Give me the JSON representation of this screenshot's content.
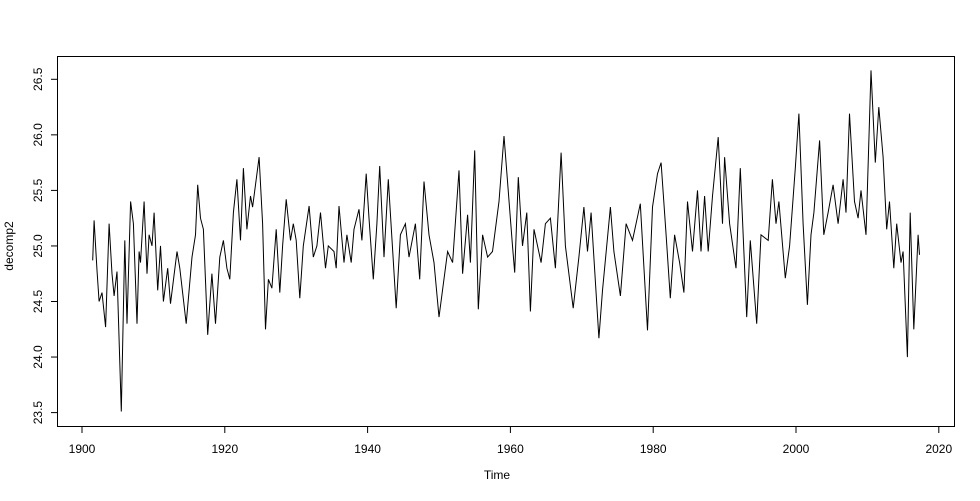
{
  "chart_data": {
    "type": "line",
    "title": "",
    "xlabel": "Time",
    "ylabel": "decomp2",
    "xlim": [
      1900,
      2020
    ],
    "ylim": [
      23.5,
      26.5
    ],
    "grid": false,
    "x_ticks": [
      1900,
      1920,
      1940,
      1960,
      1980,
      2000,
      2020
    ],
    "y_ticks": [
      "23.5",
      "24.0",
      "24.5",
      "25.0",
      "25.5",
      "26.0",
      "26.5"
    ],
    "line_color": "#000000",
    "series": [
      {
        "x": [
          1901.5,
          1901.7,
          1902.1,
          1902.4,
          1902.8,
          1903.3,
          1903.8,
          1904.2,
          1904.5,
          1904.9,
          1905.5,
          1906.0,
          1906.3,
          1906.8,
          1907.2,
          1907.7,
          1908.0,
          1908.2,
          1908.7,
          1909.1,
          1909.4,
          1909.8,
          1910.1,
          1910.6,
          1911.0,
          1911.4,
          1912.0,
          1912.4,
          1913.3,
          1913.7,
          1914.6,
          1915.4,
          1915.9,
          1916.2,
          1916.6,
          1917.0,
          1917.6,
          1918.2,
          1918.7,
          1919.3,
          1919.8,
          1920.3,
          1920.7,
          1921.2,
          1921.7,
          1922.2,
          1922.6,
          1923.1,
          1923.6,
          1923.9,
          1924.8,
          1925.3,
          1925.7,
          1926.1,
          1926.6,
          1927.2,
          1927.7,
          1928.1,
          1928.6,
          1929.2,
          1929.6,
          1930.0,
          1930.5,
          1931.0,
          1931.8,
          1932.4,
          1932.9,
          1933.4,
          1934.1,
          1934.5,
          1935.3,
          1935.6,
          1936.0,
          1936.7,
          1937.1,
          1937.7,
          1938.1,
          1938.8,
          1939.2,
          1939.8,
          1940.2,
          1940.8,
          1941.3,
          1941.7,
          1942.3,
          1942.9,
          1944.0,
          1944.6,
          1945.3,
          1945.8,
          1946.7,
          1947.3,
          1947.9,
          1948.6,
          1949.3,
          1950.0,
          1951.2,
          1951.9,
          1952.8,
          1953.3,
          1954.0,
          1954.4,
          1955.0,
          1955.5,
          1956.1,
          1956.8,
          1957.5,
          1958.4,
          1959.1,
          1960.3,
          1960.6,
          1961.1,
          1961.7,
          1962.3,
          1962.8,
          1963.3,
          1964.3,
          1964.9,
          1965.6,
          1966.3,
          1967.1,
          1967.7,
          1968.8,
          1969.6,
          1970.3,
          1970.8,
          1971.3,
          1972.4,
          1972.9,
          1974.0,
          1974.5,
          1975.4,
          1976.2,
          1977.1,
          1978.2,
          1979.2,
          1979.9,
          1980.6,
          1981.1,
          1981.8,
          1982.4,
          1983.0,
          1983.7,
          1984.3,
          1984.8,
          1985.5,
          1986.2,
          1986.7,
          1987.2,
          1987.7,
          1988.3,
          1989.1,
          1989.7,
          1990.0,
          1990.7,
          1991.6,
          1992.2,
          1993.1,
          1993.6,
          1994.5,
          1995.1,
          1996.1,
          1996.7,
          1997.2,
          1997.6,
          1998.5,
          1999.1,
          1999.9,
          2000.4,
          2001.0,
          2001.6,
          2002.1,
          2002.5,
          2003.3,
          2003.9,
          2004.5,
          2005.2,
          2005.9,
          2006.6,
          2007.0,
          2007.5,
          2008.2,
          2008.7,
          2009.1,
          2009.8,
          2010.5,
          2011.1,
          2011.6,
          2012.2,
          2012.7,
          2013.1,
          2013.7,
          2014.1,
          2014.7,
          2015.0,
          2015.6,
          2016.0,
          2016.5,
          2017.1,
          2017.3
        ],
        "y": [
          24.87,
          25.23,
          24.78,
          24.5,
          24.58,
          24.27,
          25.2,
          24.75,
          24.55,
          24.77,
          23.51,
          25.05,
          24.3,
          25.4,
          25.2,
          24.3,
          24.95,
          24.85,
          25.4,
          24.75,
          25.1,
          25.0,
          25.3,
          24.6,
          25.0,
          24.5,
          24.8,
          24.48,
          24.95,
          24.8,
          24.3,
          24.9,
          25.1,
          25.55,
          25.25,
          25.15,
          24.2,
          24.75,
          24.3,
          24.9,
          25.05,
          24.8,
          24.7,
          25.3,
          25.6,
          25.05,
          25.7,
          25.15,
          25.45,
          25.35,
          25.8,
          25.2,
          24.25,
          24.7,
          24.62,
          25.15,
          24.58,
          25.0,
          25.42,
          25.05,
          25.2,
          25.05,
          24.53,
          25.0,
          25.36,
          24.9,
          25.0,
          25.3,
          24.8,
          25.0,
          24.95,
          24.8,
          25.36,
          24.85,
          25.1,
          24.85,
          25.15,
          25.33,
          25.05,
          25.65,
          25.25,
          24.7,
          25.2,
          25.72,
          24.9,
          25.6,
          24.44,
          25.1,
          25.2,
          24.9,
          25.2,
          24.7,
          25.58,
          25.1,
          24.85,
          24.36,
          24.95,
          24.85,
          25.68,
          24.75,
          25.28,
          24.85,
          25.86,
          24.43,
          25.1,
          24.9,
          24.95,
          25.4,
          25.99,
          25.0,
          24.76,
          25.62,
          25.0,
          25.3,
          24.41,
          25.15,
          24.85,
          25.2,
          25.25,
          24.8,
          25.84,
          25.0,
          24.44,
          24.9,
          25.35,
          24.95,
          25.3,
          24.17,
          24.6,
          25.35,
          24.95,
          24.55,
          25.2,
          25.05,
          25.38,
          24.24,
          25.35,
          25.65,
          25.75,
          25.1,
          24.53,
          25.1,
          24.85,
          24.58,
          25.4,
          24.95,
          25.5,
          24.95,
          25.45,
          24.95,
          25.45,
          25.98,
          25.2,
          25.8,
          25.2,
          24.8,
          25.7,
          24.36,
          25.05,
          24.3,
          25.1,
          25.05,
          25.6,
          25.2,
          25.4,
          24.71,
          25.0,
          25.7,
          26.19,
          25.2,
          24.47,
          25.1,
          25.3,
          25.95,
          25.1,
          25.3,
          25.55,
          25.2,
          25.6,
          25.3,
          26.19,
          25.4,
          25.25,
          25.5,
          25.1,
          26.58,
          25.75,
          26.25,
          25.8,
          25.15,
          25.4,
          24.8,
          25.2,
          24.85,
          24.95,
          24.0,
          25.3,
          24.25,
          25.1,
          24.92
        ]
      }
    ]
  }
}
